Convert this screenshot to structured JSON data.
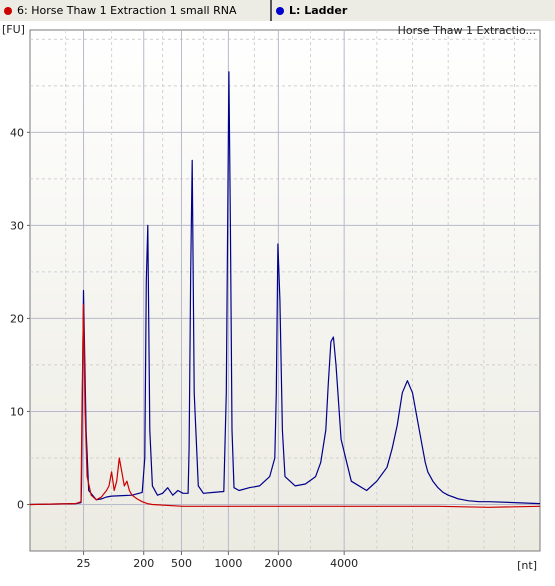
{
  "tabs": [
    {
      "label": "6: Horse Thaw 1 Extraction 1 small RNA",
      "color": "#cc0000"
    },
    {
      "label": "L: Ladder",
      "color": "#0000cc"
    }
  ],
  "chart_data": {
    "type": "line",
    "title": "Horse Thaw 1 Extractio...",
    "ylabel": "[FU]",
    "xlabel": "[nt]",
    "ylim": [
      -5,
      51
    ],
    "yticks": [
      0,
      10,
      20,
      30,
      40
    ],
    "x_ticks": [
      "25",
      "200",
      "500",
      "1000",
      "2000",
      "4000"
    ],
    "grid": true,
    "series": [
      {
        "name": "L: Ladder",
        "color": "#00008b",
        "x": [
          0.0,
          0.09,
          0.1,
          0.101,
          0.105,
          0.11,
          0.115,
          0.13,
          0.14,
          0.15,
          0.16,
          0.2,
          0.22,
          0.225,
          0.228,
          0.231,
          0.235,
          0.24,
          0.25,
          0.26,
          0.27,
          0.28,
          0.29,
          0.3,
          0.31,
          0.312,
          0.315,
          0.318,
          0.322,
          0.33,
          0.34,
          0.36,
          0.38,
          0.385,
          0.39,
          0.393,
          0.396,
          0.4,
          0.41,
          0.43,
          0.45,
          0.47,
          0.48,
          0.483,
          0.486,
          0.49,
          0.495,
          0.5,
          0.52,
          0.54,
          0.56,
          0.57,
          0.58,
          0.585,
          0.59,
          0.595,
          0.6,
          0.61,
          0.63,
          0.66,
          0.68,
          0.7,
          0.71,
          0.72,
          0.73,
          0.74,
          0.75,
          0.76,
          0.77,
          0.775,
          0.78,
          0.79,
          0.8,
          0.81,
          0.82,
          0.83,
          0.84,
          0.85,
          0.86,
          0.87,
          0.88,
          0.9,
          0.95,
          1.0
        ],
        "y": [
          0.0,
          0.1,
          0.2,
          2.0,
          23.0,
          8.0,
          1.5,
          0.5,
          0.6,
          0.8,
          0.9,
          1.0,
          1.3,
          5.0,
          24.0,
          30.0,
          8.0,
          2.0,
          1.0,
          1.2,
          1.8,
          1.0,
          1.5,
          1.2,
          1.2,
          6.0,
          25.0,
          37.0,
          12.0,
          2.0,
          1.2,
          1.3,
          1.4,
          12.0,
          46.5,
          30.0,
          8.0,
          1.8,
          1.5,
          1.8,
          2.0,
          3.0,
          5.0,
          12.0,
          28.0,
          22.0,
          8.0,
          3.0,
          2.0,
          2.2,
          3.0,
          4.5,
          8.0,
          13.0,
          17.5,
          18.0,
          15.0,
          7.0,
          2.5,
          1.5,
          2.5,
          4.0,
          6.0,
          8.5,
          12.0,
          13.3,
          12.0,
          9.0,
          6.0,
          4.5,
          3.5,
          2.5,
          1.8,
          1.3,
          1.0,
          0.8,
          0.6,
          0.5,
          0.4,
          0.35,
          0.3,
          0.3,
          0.2,
          0.1
        ]
      },
      {
        "name": "6: Horse Thaw 1 Extraction 1 small RNA",
        "color": "#cc0000",
        "x": [
          0.0,
          0.09,
          0.1,
          0.102,
          0.105,
          0.108,
          0.112,
          0.12,
          0.13,
          0.14,
          0.15,
          0.155,
          0.16,
          0.165,
          0.17,
          0.175,
          0.18,
          0.185,
          0.19,
          0.195,
          0.2,
          0.21,
          0.22,
          0.23,
          0.24,
          0.3,
          0.4,
          0.5,
          0.6,
          0.7,
          0.8,
          0.9,
          1.0
        ],
        "y": [
          0.0,
          0.1,
          0.3,
          10.5,
          21.5,
          10.0,
          3.0,
          1.0,
          0.5,
          0.8,
          1.5,
          2.0,
          3.5,
          1.5,
          2.5,
          5.0,
          3.5,
          2.0,
          2.5,
          1.5,
          1.0,
          0.6,
          0.3,
          0.1,
          0.0,
          -0.2,
          -0.2,
          -0.2,
          -0.2,
          -0.2,
          -0.2,
          -0.3,
          -0.2
        ]
      }
    ]
  }
}
